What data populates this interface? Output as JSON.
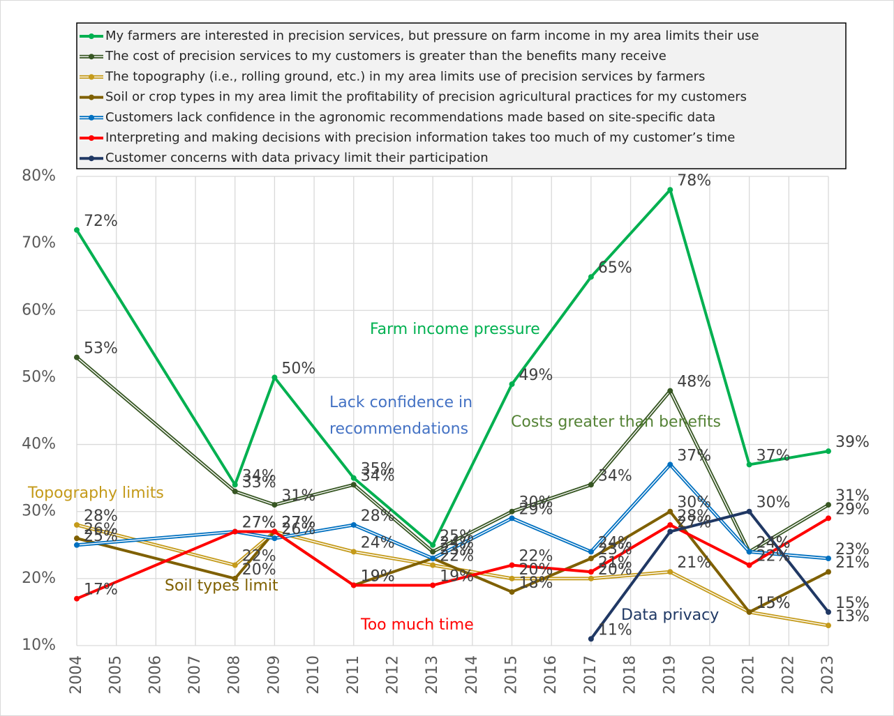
{
  "chart_data": {
    "type": "line",
    "x": [
      2004,
      2008,
      2009,
      2011,
      2013,
      2015,
      2017,
      2019,
      2021,
      2023
    ],
    "xlim": [
      2004,
      2023
    ],
    "xticks": [
      2004,
      2005,
      2006,
      2007,
      2008,
      2009,
      2010,
      2011,
      2012,
      2013,
      2014,
      2015,
      2016,
      2017,
      2018,
      2019,
      2020,
      2021,
      2022,
      2023
    ],
    "ylim": [
      10,
      80
    ],
    "yticks": [
      {
        "value": 10,
        "label": "10%"
      },
      {
        "value": 20,
        "label": "20%"
      },
      {
        "value": 30,
        "label": "30%"
      },
      {
        "value": 40,
        "label": "40%"
      },
      {
        "value": 50,
        "label": "50%"
      },
      {
        "value": 60,
        "label": "60%"
      },
      {
        "value": 70,
        "label": "70%"
      },
      {
        "value": 80,
        "label": "80%"
      }
    ],
    "grid": true,
    "legend": "top",
    "series": [
      {
        "name": "My farmers are interested in precision services, but pressure on farm income in my area limits their use",
        "color": "#00b050",
        "line_style": "solid",
        "values": [
          72,
          34,
          50,
          35,
          25,
          49,
          65,
          78,
          37,
          39
        ],
        "value_labels": [
          "72%",
          "34%",
          "50%",
          "35%",
          "25%",
          "49%",
          "65%",
          "78%",
          "37%",
          "39%"
        ]
      },
      {
        "name": "The cost of precision services to my customers is greater than the benefits many receive",
        "color": "#375623",
        "line_style": "double",
        "values": [
          53,
          33,
          31,
          34,
          24,
          30,
          34,
          48,
          24,
          31
        ],
        "value_labels": [
          "53%",
          "33%",
          "31%",
          "34%",
          "24%",
          "30%",
          "34%",
          "48%",
          "24%",
          "31%"
        ]
      },
      {
        "name": "The topography (i.e., rolling ground, etc.) in my area limits use of precision services by farmers",
        "color": "#c49a1a",
        "line_style": "double",
        "values": [
          28,
          22,
          27,
          24,
          22,
          20,
          20,
          21,
          15,
          13
        ],
        "value_labels": [
          "28%",
          "22%",
          "27%",
          "24%",
          "22%",
          "20%",
          "20%",
          "21%",
          "15%",
          "13%"
        ]
      },
      {
        "name": "Soil or crop types in my area limit the profitability of precision agricultural practices for my customers",
        "color": "#7f6000",
        "line_style": "solid",
        "values": [
          26,
          20,
          27,
          19,
          23,
          18,
          23,
          30,
          15,
          21
        ],
        "value_labels": [
          "26%",
          "20%",
          "27%",
          "19%",
          "23%",
          "18%",
          "23%",
          "30%",
          "15%",
          "21%"
        ]
      },
      {
        "name": "Customers lack confidence in the agronomic recommendations made based on site-specific data",
        "color": "#0070c0",
        "line_style": "double",
        "values": [
          25,
          27,
          26,
          28,
          23,
          29,
          24,
          37,
          24,
          23
        ],
        "value_labels": [
          "25%",
          "27%",
          "26%",
          "28%",
          "23%",
          "29%",
          "24%",
          "37%",
          "24%",
          "23%"
        ]
      },
      {
        "name": "Interpreting and making decisions with precision information takes too much of my customer’s time",
        "color": "#ff0000",
        "line_style": "solid",
        "values": [
          17,
          27,
          27,
          19,
          19,
          22,
          21,
          28,
          22,
          29
        ],
        "value_labels": [
          "17%",
          "27%",
          "27%",
          "19%",
          "19%",
          "22%",
          "21%",
          "28%",
          "22%",
          "29%"
        ]
      },
      {
        "name": "Customer concerns with data privacy limit their participation",
        "color": "#203864",
        "line_style": "solid",
        "values": [
          null,
          null,
          null,
          null,
          null,
          null,
          11,
          27,
          30,
          15
        ],
        "value_labels": [
          null,
          null,
          null,
          null,
          null,
          null,
          "11%",
          "27%",
          "30%",
          "15%"
        ]
      }
    ],
    "annotations": [
      {
        "text": [
          "Farm income pressure"
        ],
        "color": "#00b050"
      },
      {
        "text": [
          "Lack confidence in",
          "recommendations"
        ],
        "color": "#4472c4"
      },
      {
        "text": [
          "Costs greater than benefits"
        ],
        "color": "#548235"
      },
      {
        "text": [
          "Topography limits"
        ],
        "color": "#c49a1a"
      },
      {
        "text": [
          "Soil types limit"
        ],
        "color": "#7f6000"
      },
      {
        "text": [
          "Too much time"
        ],
        "color": "#ff0000"
      },
      {
        "text": [
          "Data privacy"
        ],
        "color": "#1f3864"
      }
    ]
  }
}
